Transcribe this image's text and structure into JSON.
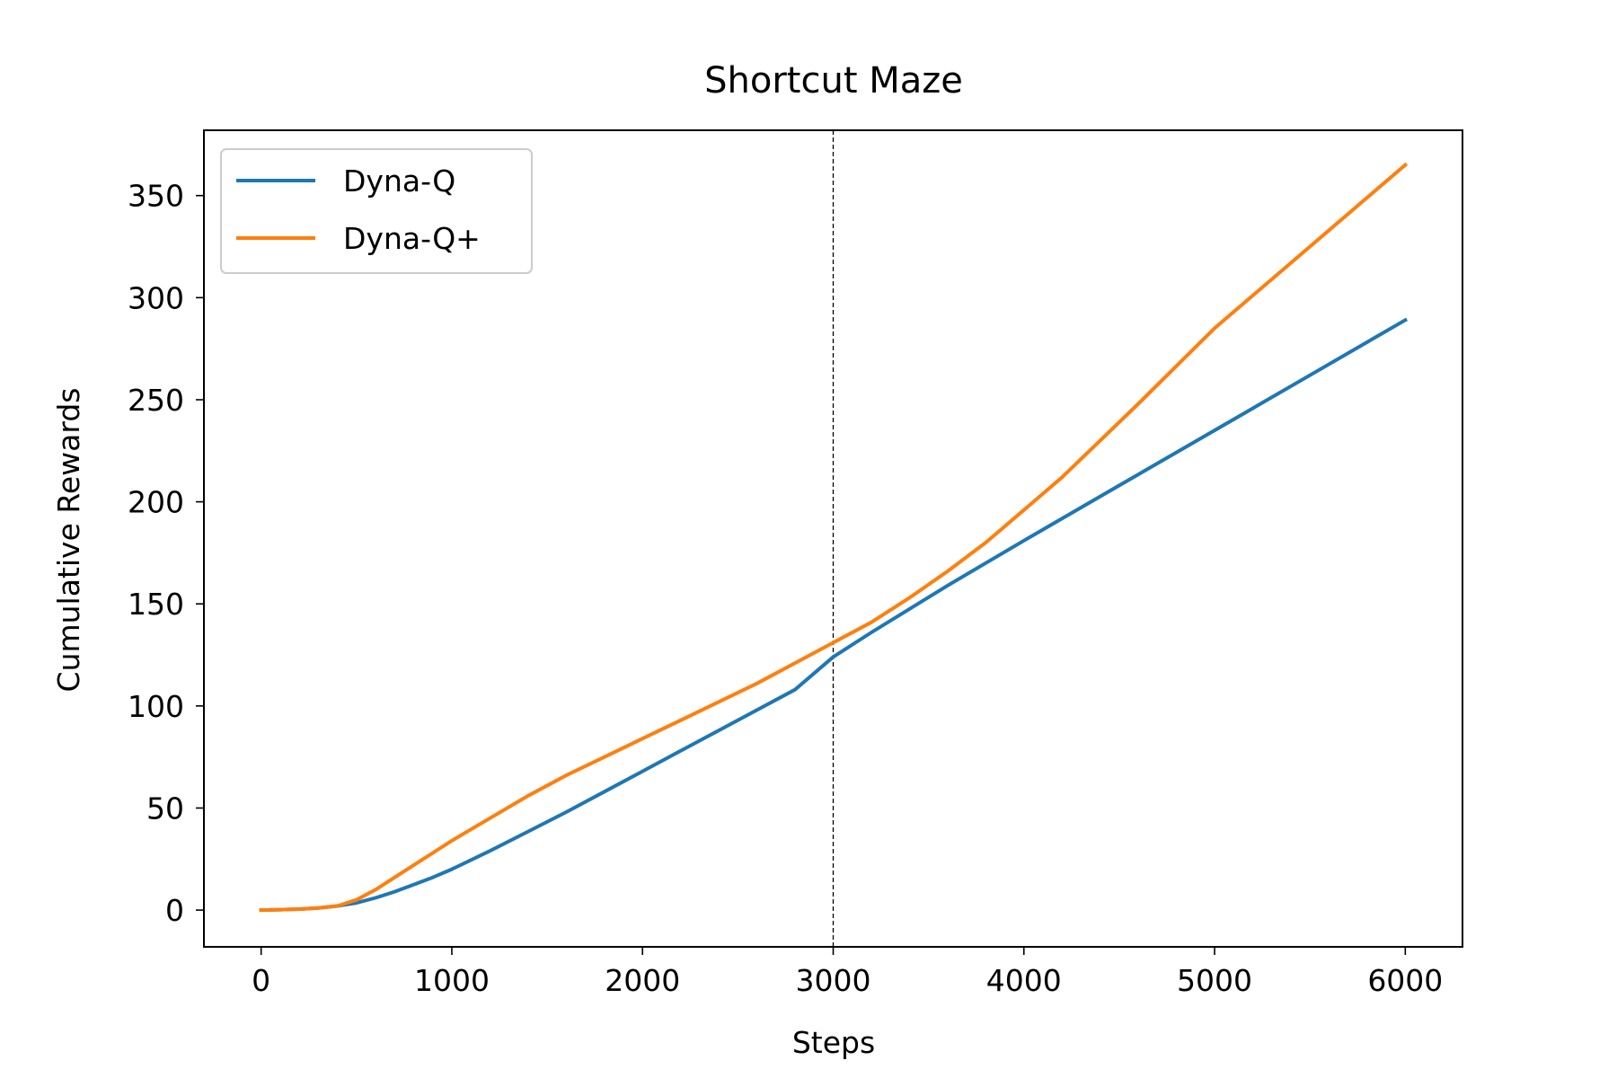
{
  "chart_data": {
    "type": "line",
    "title": "Shortcut Maze",
    "xlabel": "Steps",
    "ylabel": "Cumulative Rewards",
    "xlim": [
      -300,
      6300
    ],
    "ylim": [
      -18,
      382
    ],
    "xticks": [
      0,
      1000,
      2000,
      3000,
      4000,
      5000,
      6000
    ],
    "yticks": [
      0,
      50,
      100,
      150,
      200,
      250,
      300,
      350
    ],
    "grid": false,
    "legend_position": "top-left",
    "vline": {
      "x": 3000,
      "style": "dashed",
      "color": "#000000"
    },
    "series": [
      {
        "name": "Dyna-Q",
        "color": "#1f77b4",
        "x": [
          0,
          100,
          200,
          300,
          400,
          500,
          600,
          700,
          800,
          900,
          1000,
          1200,
          1400,
          1600,
          1800,
          2000,
          2200,
          2400,
          2600,
          2800,
          3000,
          3200,
          3400,
          3600,
          3800,
          4000,
          4500,
          5000,
          5500,
          6000
        ],
        "values": [
          0,
          0.2,
          0.5,
          1,
          2,
          3.5,
          6,
          9,
          12.5,
          16,
          20,
          29,
          38.5,
          48,
          58,
          68,
          78,
          88,
          98,
          108,
          124,
          136,
          147.5,
          159,
          170,
          181,
          208,
          235,
          262,
          289
        ]
      },
      {
        "name": "Dyna-Q+",
        "color": "#ff7f0e",
        "x": [
          0,
          100,
          200,
          300,
          400,
          500,
          600,
          700,
          800,
          900,
          1000,
          1200,
          1400,
          1600,
          1800,
          2000,
          2200,
          2400,
          2600,
          2800,
          3000,
          3200,
          3400,
          3600,
          3800,
          4000,
          4200,
          4400,
          4600,
          5000,
          5500,
          6000
        ],
        "values": [
          0,
          0.2,
          0.5,
          1,
          2,
          5,
          10,
          16,
          22,
          28,
          34,
          45,
          56,
          66,
          75,
          84,
          93,
          102,
          111,
          121,
          131,
          141,
          153,
          166,
          180,
          196,
          212,
          230,
          248,
          285,
          325,
          365
        ]
      }
    ]
  }
}
